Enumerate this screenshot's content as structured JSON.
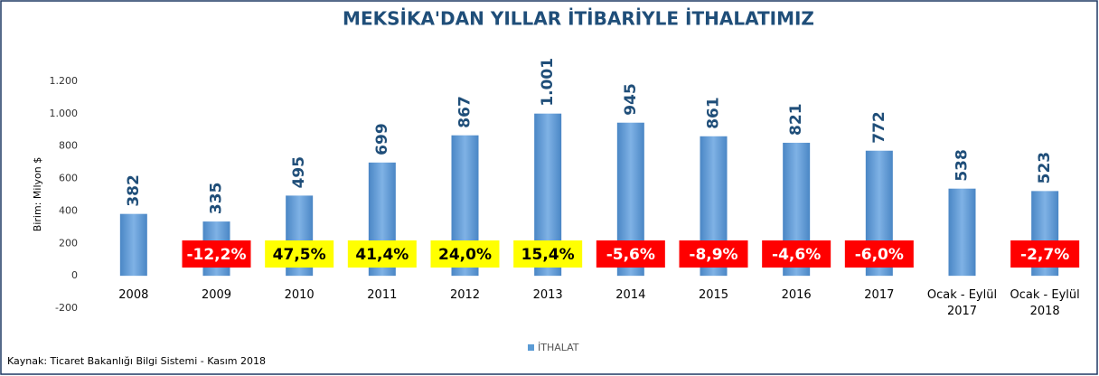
{
  "chart_data": {
    "type": "bar",
    "title": "MEKSİKA'DAN YILLAR İTİBARİYLE İTHALATIMIZ",
    "y_label": "Birim: Milyon $",
    "source": "Kaynak: Ticaret Bakanlığı Bilgi Sistemi - Kasım 2018",
    "categories": [
      "2008",
      "2009",
      "2010",
      "2011",
      "2012",
      "2013",
      "2014",
      "2015",
      "2016",
      "2017",
      "Ocak - Eylül 2017",
      "Ocak - Eylül 2018"
    ],
    "series": [
      {
        "name": "İTHALAT",
        "color": "#5b9bd5",
        "values": [
          382,
          335,
          495,
          699,
          867,
          1001,
          945,
          861,
          821,
          772,
          538,
          523
        ],
        "value_labels": [
          "382",
          "335",
          "495",
          "699",
          "867",
          "1.001",
          "945",
          "861",
          "821",
          "772",
          "538",
          "523"
        ]
      }
    ],
    "changes": [
      null,
      -12.2,
      47.5,
      41.4,
      24.0,
      15.4,
      -5.6,
      -8.9,
      -4.6,
      -6.0,
      null,
      -2.7
    ],
    "change_labels": [
      null,
      "-12,2%",
      "47,5%",
      "41,4%",
      "24,0%",
      "15,4%",
      "-5,6%",
      "-8,9%",
      "-4,6%",
      "-6,0%",
      null,
      "-2,7%"
    ],
    "ylim": [
      -200,
      1200
    ],
    "yticks": [
      {
        "value": -200,
        "label": "-200"
      },
      0,
      200,
      400,
      600,
      800,
      {
        "value": 1000,
        "label": "1.000"
      },
      {
        "value": 1200,
        "label": "1.200"
      }
    ],
    "grid": false,
    "legend": "bottom"
  }
}
